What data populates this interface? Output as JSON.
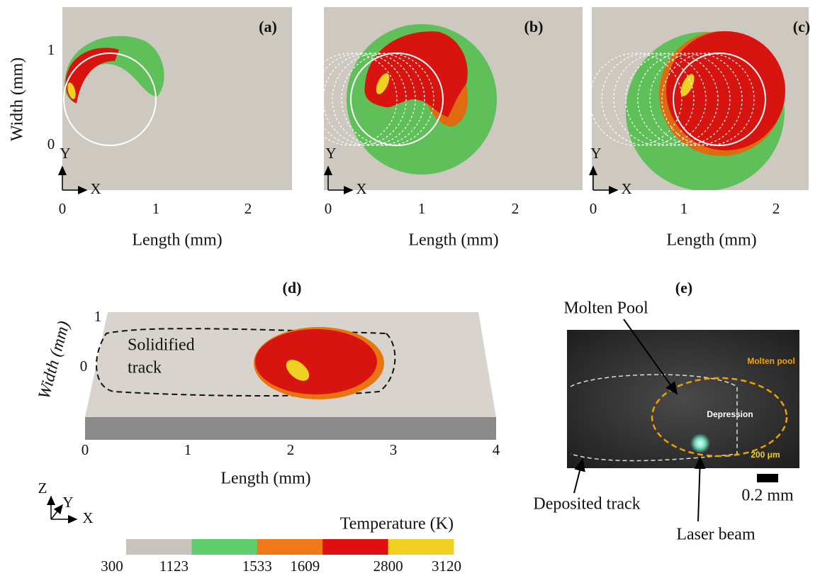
{
  "panels": [
    {
      "label": "(a)",
      "x_label": "Length (mm)",
      "y_label": "Width (mm)",
      "x_ticks": [
        "0",
        "1",
        "2"
      ],
      "y_ticks": [
        "0",
        "1"
      ],
      "x_axis": "X",
      "y_axis": "Y"
    },
    {
      "label": "(b)",
      "x_label": "Length (mm)",
      "x_ticks": [
        "0",
        "1",
        "2"
      ],
      "x_axis": "X",
      "y_axis": "Y"
    },
    {
      "label": "(c)",
      "x_label": "Length (mm)",
      "x_ticks": [
        "0",
        "1",
        "2"
      ],
      "x_axis": "X",
      "y_axis": "Y"
    }
  ],
  "panel_d": {
    "label": "(d)",
    "annotation": [
      "Solidified",
      "track"
    ],
    "x_label": "Length (mm)",
    "y_label": "Width (mm)",
    "x_ticks": [
      "0",
      "1",
      "2",
      "3",
      "4"
    ],
    "y_ticks": [
      "1",
      "0"
    ],
    "axes": [
      "Z",
      "Y",
      "X"
    ]
  },
  "panel_e": {
    "label": "(e)",
    "callouts": [
      "Molten Pool",
      "Deposited track",
      "Laser beam"
    ],
    "scale_bar": "0.2 mm",
    "image_labels": [
      "Molten pool",
      "Depression",
      "200 μm"
    ]
  },
  "colorbar": {
    "title": "Temperature (K)",
    "ticks": [
      300,
      1123,
      1533,
      1609,
      2800,
      3120
    ],
    "colors": [
      "#c8c3bb",
      "#5fcf6b",
      "#f07818",
      "#e01010",
      "#f0d020"
    ]
  }
}
